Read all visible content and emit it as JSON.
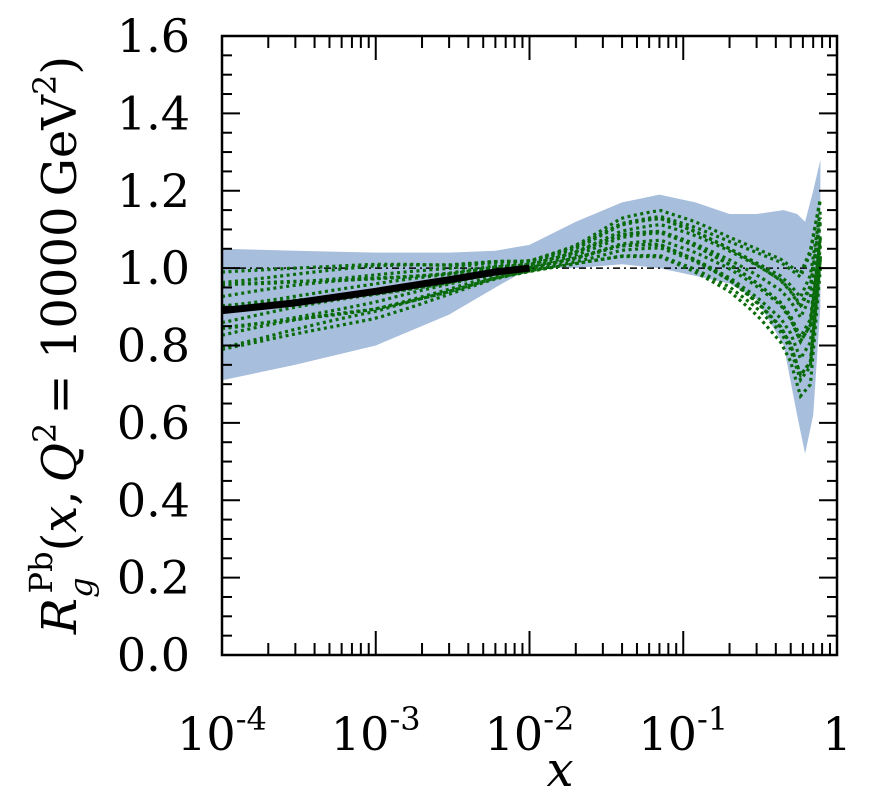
{
  "chart_data": {
    "type": "line",
    "xscale": "log",
    "xlim": [
      0.0001,
      1
    ],
    "ylim": [
      0.0,
      1.6
    ],
    "grid": false,
    "legend": "none",
    "x_ticks": [
      {
        "value": 0.0001,
        "base": "10",
        "exp": "-4"
      },
      {
        "value": 0.001,
        "base": "10",
        "exp": "-3"
      },
      {
        "value": 0.01,
        "base": "10",
        "exp": "-2"
      },
      {
        "value": 0.1,
        "base": "10",
        "exp": "-1"
      },
      {
        "value": 1,
        "base": "1",
        "exp": ""
      }
    ],
    "y_ticks": [
      "0.0",
      "0.2",
      "0.4",
      "0.6",
      "0.8",
      "1.0",
      "1.2",
      "1.4",
      "1.6"
    ],
    "xlabel": "x",
    "ylabel": {
      "R": "R",
      "sub": "g",
      "sup": "Pb",
      "open": "(",
      "x": "x",
      "comma": ",",
      "Q": "Q",
      "Q_exp": "2",
      "eq": "= 10000",
      "unit": "GeV",
      "unit_exp": "2",
      "close": ")"
    },
    "colors": {
      "band": "#a8bedd",
      "central": "#000000",
      "replicas": "#0a6b0a",
      "reference": "#000000"
    },
    "reference_line": 1.0,
    "series": [
      {
        "role": "uncertainty-band",
        "x": [
          0.0001,
          0.0003,
          0.001,
          0.003,
          0.006,
          0.01,
          0.02,
          0.04,
          0.07,
          0.12,
          0.2,
          0.3,
          0.45,
          0.55,
          0.62,
          0.7,
          0.78
        ],
        "upper": [
          1.05,
          1.045,
          1.04,
          1.04,
          1.045,
          1.06,
          1.12,
          1.17,
          1.19,
          1.17,
          1.14,
          1.14,
          1.15,
          1.14,
          1.12,
          1.2,
          1.28
        ],
        "lower": [
          0.71,
          0.75,
          0.8,
          0.88,
          0.95,
          1.0,
          1.0,
          1.01,
          1.0,
          0.98,
          0.96,
          0.92,
          0.8,
          0.62,
          0.52,
          0.62,
          0.9
        ]
      },
      {
        "role": "central",
        "x": [
          0.0001,
          0.0003,
          0.001,
          0.003,
          0.006,
          0.01
        ],
        "y": [
          0.89,
          0.91,
          0.94,
          0.97,
          0.99,
          1.0
        ]
      },
      {
        "role": "replica-envelope",
        "x": [
          0.0001,
          0.0003,
          0.001,
          0.003,
          0.006,
          0.01,
          0.02,
          0.04,
          0.07,
          0.12,
          0.2,
          0.3,
          0.45,
          0.55,
          0.62,
          0.7,
          0.78
        ],
        "upper": [
          0.99,
          1.0,
          1.01,
          1.01,
          1.02,
          1.02,
          1.06,
          1.13,
          1.15,
          1.12,
          1.08,
          1.05,
          1.02,
          0.99,
          0.98,
          1.08,
          1.18
        ],
        "lower": [
          0.79,
          0.83,
          0.87,
          0.93,
          0.97,
          0.99,
          1.01,
          1.03,
          1.03,
          0.99,
          0.94,
          0.88,
          0.8,
          0.72,
          0.6,
          0.75,
          1.0
        ]
      }
    ]
  }
}
